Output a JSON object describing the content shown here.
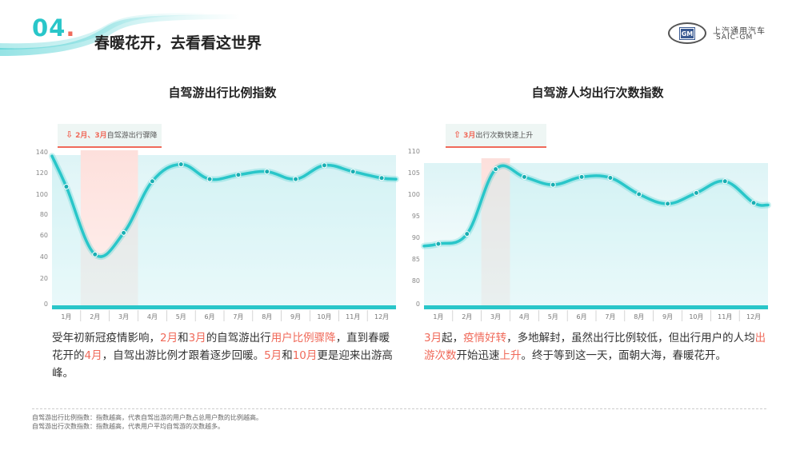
{
  "header": {
    "section_number": "04",
    "section_dot": ".",
    "title": "春暖花开，去看看这世界"
  },
  "brand": {
    "gm_mark": "GM",
    "name_cn": "上汽通用汽车",
    "name_en": "SAIC-GM"
  },
  "colors": {
    "accent": "#29c6c9",
    "highlight": "#f06a5a",
    "highlight_band": "#fde0dc"
  },
  "left": {
    "callout": {
      "arrow": "⇩",
      "highlight": "2月、3月",
      "text": "自驾游出行骤降"
    },
    "description": [
      {
        "t": "受年初新冠疫情影响，"
      },
      {
        "t": "2月",
        "hl": true
      },
      {
        "t": "和"
      },
      {
        "t": "3月",
        "hl": true
      },
      {
        "t": "的自驾游出行"
      },
      {
        "t": "用户比例骤降",
        "hl": true
      },
      {
        "t": "，直到春暖花开的"
      },
      {
        "t": "4月",
        "hl": true
      },
      {
        "t": "，自驾出游比例才跟着逐步回暖。"
      },
      {
        "t": "5月",
        "hl": true
      },
      {
        "t": "和"
      },
      {
        "t": "10月",
        "hl": true
      },
      {
        "t": "更是迎来出游高峰。"
      }
    ]
  },
  "right": {
    "callout": {
      "arrow": "⇧",
      "highlight": "3月",
      "text": "出行次数快速上升"
    },
    "description": [
      {
        "t": "3月",
        "hl": true
      },
      {
        "t": "起，"
      },
      {
        "t": "疫情好转",
        "hl": true
      },
      {
        "t": "，多地解封，虽然出行比例较低，但出行用户的人均"
      },
      {
        "t": "出游次数",
        "hl": true
      },
      {
        "t": "开始迅速"
      },
      {
        "t": "上升",
        "hl": true
      },
      {
        "t": "。终于等到这一天，面朝大海，春暖花开。"
      }
    ]
  },
  "footnotes": [
    "自驾游出行比例指数：指数越高，代表自驾出游的用户数占总用户数的比例越高。",
    "自驾游出行次数指数：指数越高，代表用户平均自驾游的次数越多。"
  ],
  "chart_data": [
    {
      "type": "line",
      "title": "自驾游出行比例指数",
      "categories": [
        "1月",
        "2月",
        "3月",
        "4月",
        "5月",
        "6月",
        "7月",
        "8月",
        "9月",
        "10月",
        "11月",
        "12月"
      ],
      "values": [
        107,
        42,
        62,
        112,
        128,
        114,
        118,
        121,
        114,
        127,
        121,
        115
      ],
      "start_value": 136,
      "end_value": 114,
      "yticks": [
        0,
        20,
        40,
        60,
        80,
        100,
        120,
        140
      ],
      "ylim": [
        0,
        140
      ],
      "highlight_categories": [
        "2月",
        "3月"
      ],
      "grid": false,
      "legend": "none"
    },
    {
      "type": "line",
      "title": "自驾游人均出行次数指数",
      "categories": [
        "1月",
        "2月",
        "3月",
        "4月",
        "5月",
        "6月",
        "7月",
        "8月",
        "9月",
        "10月",
        "11月",
        "12月"
      ],
      "values": [
        88.5,
        90.8,
        105.8,
        104,
        102.2,
        104,
        103.8,
        100,
        97.8,
        100.3,
        103,
        98
      ],
      "start_value": 88,
      "end_value": 97.5,
      "yticks": [
        0,
        80,
        85,
        90,
        95,
        100,
        105,
        110
      ],
      "ylim": [
        0,
        110
      ],
      "highlight_categories": [
        "3月"
      ],
      "grid": false,
      "legend": "none"
    }
  ]
}
